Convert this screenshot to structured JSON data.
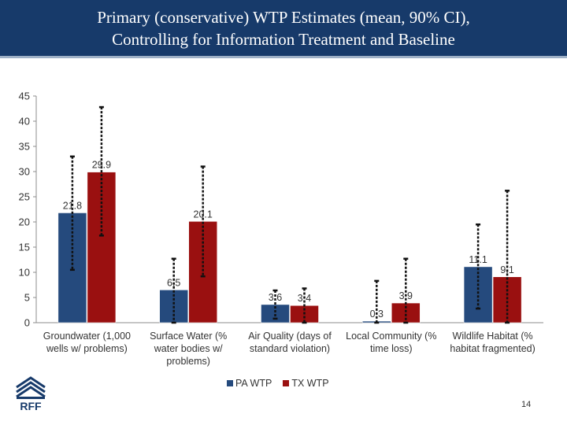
{
  "slide": {
    "title_line1": "Primary (conservative) WTP Estimates (mean, 90% CI),",
    "title_line2": "Controlling for Information Treatment and Baseline",
    "page_number": "14",
    "logo_text": "RFF"
  },
  "chart_data": {
    "type": "bar",
    "ylim": [
      0,
      45
    ],
    "yticks": [
      "0",
      "5",
      "10",
      "15",
      "20",
      "25",
      "30",
      "35",
      "40",
      "45"
    ],
    "categories": [
      [
        "Groundwater (1,000",
        "wells w/ problems)"
      ],
      [
        "Surface Water (%",
        "water bodies w/",
        "problems)"
      ],
      [
        "Air Quality (days of",
        "standard violation)"
      ],
      [
        "Local Community (%",
        "time loss)"
      ],
      [
        "Wildlife Habitat (%",
        "habitat fragmented)"
      ]
    ],
    "series": [
      {
        "name": "PA WTP",
        "color": "#254a7d",
        "values": [
          21.8,
          6.5,
          3.6,
          0.3,
          11.1
        ],
        "labels": [
          "21.8",
          "6.5",
          "3.6",
          "0.3",
          "11.1"
        ],
        "ci_low": [
          10.5,
          0,
          0.8,
          0,
          2.8
        ],
        "ci_high": [
          33.0,
          12.7,
          6.4,
          8.3,
          19.5
        ]
      },
      {
        "name": "TX WTP",
        "color": "#9a1010",
        "values": [
          29.9,
          20.1,
          3.4,
          3.9,
          9.1
        ],
        "labels": [
          "29.9",
          "20.1",
          "3.4",
          "3.9",
          "9.1"
        ],
        "ci_low": [
          17.3,
          9.2,
          0,
          0,
          0
        ],
        "ci_high": [
          42.8,
          31.0,
          6.8,
          12.7,
          26.2
        ]
      }
    ],
    "grid": false,
    "legend_position": "bottom"
  }
}
